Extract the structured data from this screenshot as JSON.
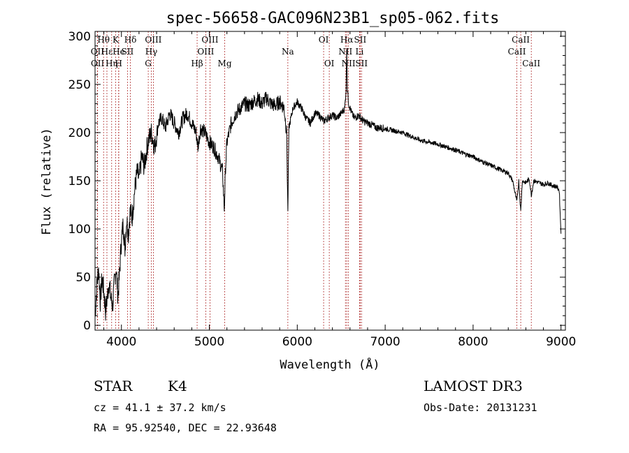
{
  "chart_data": {
    "type": "line",
    "title": "spec-56658-GAC096N23B1_sp05-062.fits",
    "xlabel": "Wavelength (Å)",
    "ylabel": "Flux (relative)",
    "xlim": [
      3700,
      9050
    ],
    "ylim": [
      -5,
      305
    ],
    "xticks": [
      4000,
      5000,
      6000,
      7000,
      8000,
      9000
    ],
    "yticks": [
      0,
      50,
      100,
      150,
      200,
      250,
      300
    ],
    "spectrum": {
      "x": [
        3700,
        3720,
        3740,
        3760,
        3780,
        3800,
        3820,
        3840,
        3860,
        3880,
        3900,
        3920,
        3940,
        3960,
        3980,
        4000,
        4020,
        4040,
        4060,
        4080,
        4100,
        4120,
        4150,
        4180,
        4200,
        4230,
        4260,
        4300,
        4340,
        4380,
        4420,
        4460,
        4500,
        4550,
        4600,
        4650,
        4700,
        4750,
        4800,
        4850,
        4870,
        4900,
        4950,
        5000,
        5050,
        5100,
        5150,
        5170,
        5185,
        5200,
        5250,
        5300,
        5350,
        5400,
        5450,
        5500,
        5550,
        5600,
        5650,
        5700,
        5750,
        5800,
        5850,
        5880,
        5893,
        5905,
        5950,
        6000,
        6050,
        6100,
        6150,
        6200,
        6250,
        6300,
        6350,
        6400,
        6450,
        6500,
        6540,
        6555,
        6563,
        6570,
        6585,
        6620,
        6650,
        6700,
        6750,
        6800,
        6850,
        6900,
        6950,
        7000,
        7100,
        7200,
        7300,
        7400,
        7500,
        7600,
        7700,
        7800,
        7900,
        8000,
        8100,
        8200,
        8300,
        8400,
        8450,
        8498,
        8520,
        8542,
        8560,
        8600,
        8640,
        8662,
        8690,
        8750,
        8800,
        8850,
        8900,
        8950,
        8980,
        9000
      ],
      "y": [
        10,
        40,
        60,
        25,
        50,
        35,
        15,
        30,
        45,
        28,
        20,
        45,
        60,
        30,
        55,
        90,
        105,
        80,
        110,
        95,
        120,
        110,
        140,
        160,
        150,
        175,
        165,
        190,
        200,
        185,
        210,
        215,
        205,
        220,
        210,
        200,
        215,
        220,
        210,
        200,
        185,
        205,
        200,
        190,
        185,
        175,
        160,
        120,
        165,
        190,
        210,
        220,
        225,
        230,
        228,
        232,
        235,
        230,
        236,
        230,
        228,
        232,
        226,
        200,
        115,
        205,
        225,
        232,
        225,
        215,
        210,
        220,
        218,
        212,
        215,
        218,
        215,
        220,
        225,
        245,
        290,
        245,
        230,
        220,
        215,
        218,
        212,
        210,
        208,
        205,
        205,
        204,
        202,
        200,
        196,
        192,
        190,
        188,
        185,
        182,
        178,
        175,
        170,
        166,
        162,
        158,
        150,
        128,
        150,
        118,
        150,
        148,
        152,
        135,
        150,
        148,
        146,
        148,
        145,
        144,
        140,
        95
      ]
    },
    "lines": [
      {
        "label": "Hθ",
        "wl": 3797,
        "row": 0
      },
      {
        "label": "OII",
        "wl": 3727,
        "row": 1
      },
      {
        "label": "OII",
        "wl": 3729,
        "row": 2
      },
      {
        "label": "Hε",
        "wl": 3835,
        "row": 1
      },
      {
        "label": "Hη",
        "wl": 3889,
        "row": 2
      },
      {
        "label": "K",
        "wl": 3934,
        "row": 0
      },
      {
        "label": "He",
        "wl": 3970,
        "row": 1
      },
      {
        "label": "SII",
        "wl": 4069,
        "row": 1
      },
      {
        "label": "H",
        "wl": 3968,
        "row": 2
      },
      {
        "label": "Hδ",
        "wl": 4102,
        "row": 0
      },
      {
        "label": "OIII",
        "wl": 4363,
        "row": 0
      },
      {
        "label": "Hγ",
        "wl": 4340,
        "row": 1
      },
      {
        "label": "G",
        "wl": 4305,
        "row": 2
      },
      {
        "label": "Hβ",
        "wl": 4861,
        "row": 2
      },
      {
        "label": "OIII",
        "wl": 5007,
        "row": 0
      },
      {
        "label": "OIII",
        "wl": 4959,
        "row": 1
      },
      {
        "label": "Mg",
        "wl": 5175,
        "row": 2
      },
      {
        "label": "Na",
        "wl": 5893,
        "row": 1
      },
      {
        "label": "OI",
        "wl": 6300,
        "row": 0
      },
      {
        "label": "OI",
        "wl": 6364,
        "row": 2
      },
      {
        "label": "Hα",
        "wl": 6563,
        "row": 0
      },
      {
        "label": "SII",
        "wl": 6716,
        "row": 0
      },
      {
        "label": "NII",
        "wl": 6548,
        "row": 1
      },
      {
        "label": "Li",
        "wl": 6708,
        "row": 1
      },
      {
        "label": "NII",
        "wl": 6583,
        "row": 2
      },
      {
        "label": "SII",
        "wl": 6731,
        "row": 2
      },
      {
        "label": "CaII",
        "wl": 8542,
        "row": 0
      },
      {
        "label": "CaII",
        "wl": 8498,
        "row": 1
      },
      {
        "label": "CaII",
        "wl": 8662,
        "row": 2
      }
    ]
  },
  "info": {
    "object_type": "STAR",
    "subclass": "K4",
    "redshift": "cz = 41.1 ± 37.2 km/s",
    "coords": "RA =  95.92540, DEC =  22.93648",
    "survey": "LAMOST DR3",
    "obs_date": "Obs-Date: 20131231"
  }
}
